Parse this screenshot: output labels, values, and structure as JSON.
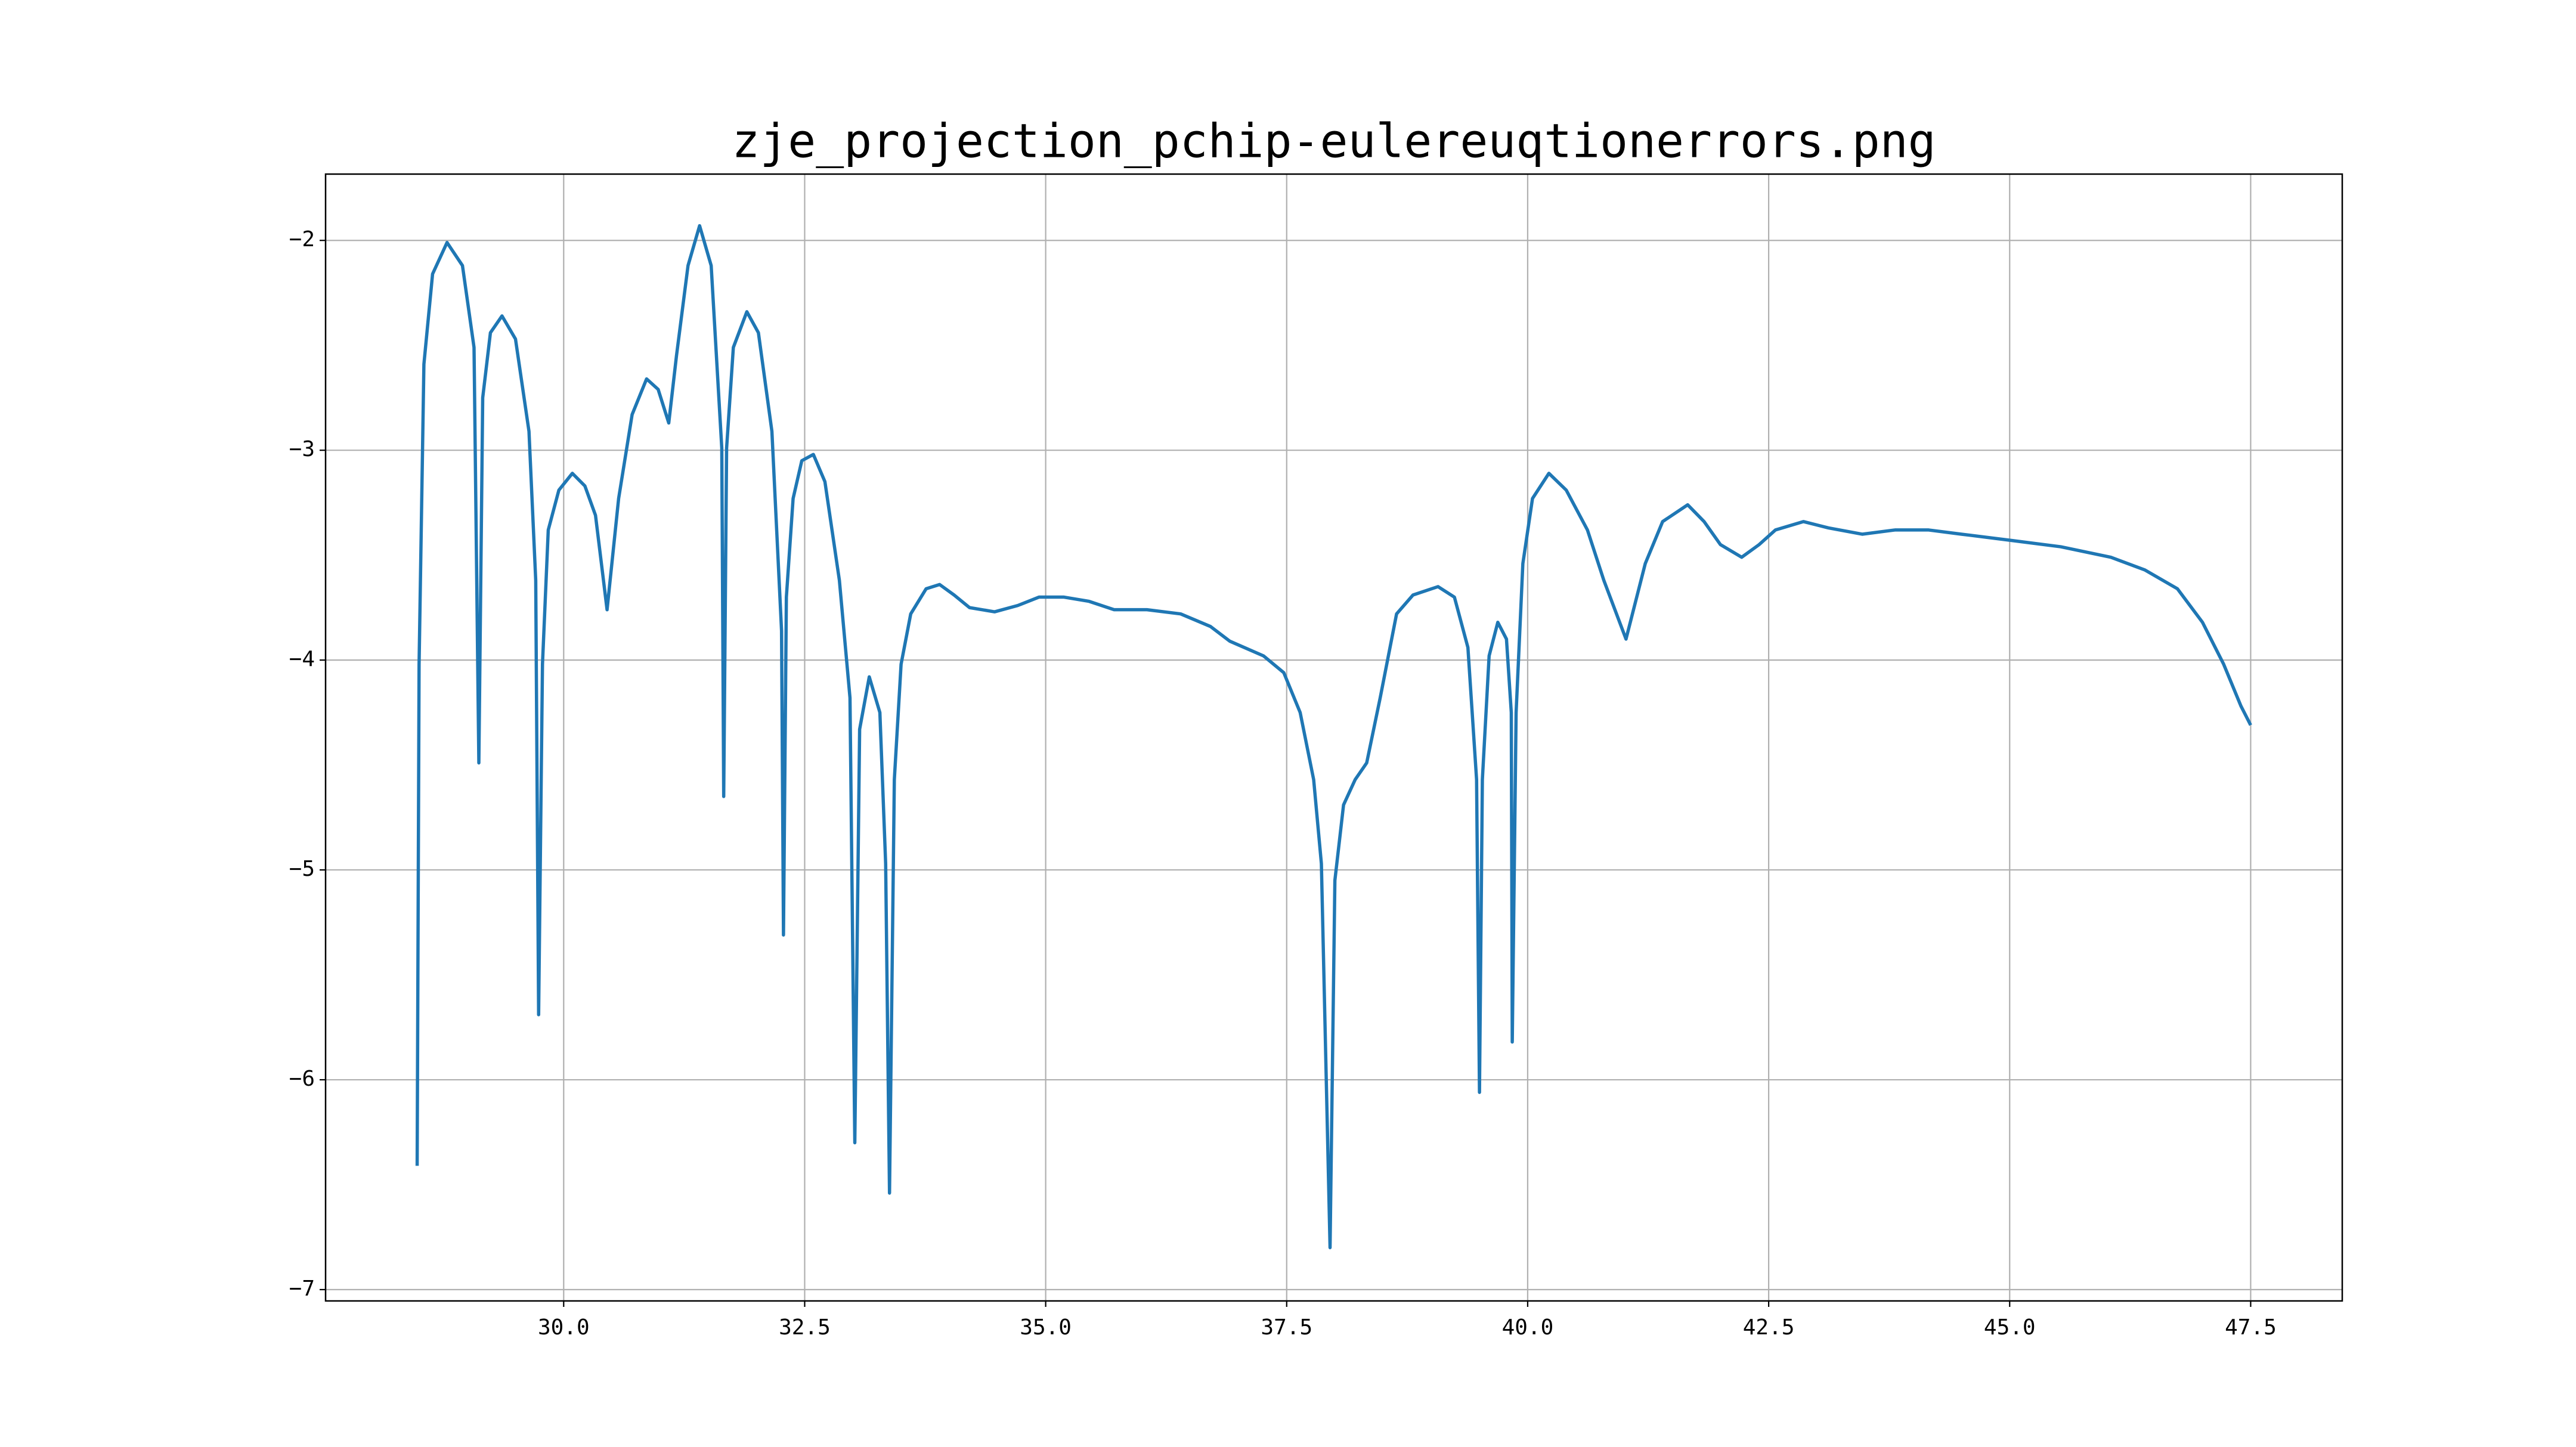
{
  "chart_data": {
    "type": "line",
    "title": "zje_projection_pchip-eulereuqtionerrors.png",
    "x": [
      28.48,
      28.5,
      28.55,
      28.64,
      28.79,
      28.95,
      29.07,
      29.12,
      29.16,
      29.24,
      29.36,
      29.5,
      29.64,
      29.71,
      29.74,
      29.78,
      29.84,
      29.95,
      30.09,
      30.22,
      30.33,
      30.45,
      30.57,
      30.71,
      30.86,
      30.98,
      31.09,
      31.17,
      31.29,
      31.41,
      31.53,
      31.64,
      31.66,
      31.69,
      31.76,
      31.9,
      32.02,
      32.16,
      32.26,
      32.28,
      32.31,
      32.38,
      32.47,
      32.59,
      32.71,
      32.86,
      32.97,
      33.02,
      33.07,
      33.17,
      33.28,
      33.34,
      33.38,
      33.43,
      33.5,
      33.6,
      33.76,
      33.9,
      34.05,
      34.21,
      34.47,
      34.71,
      34.93,
      35.19,
      35.45,
      35.71,
      36.05,
      36.4,
      36.71,
      36.91,
      37.26,
      37.47,
      37.64,
      37.78,
      37.86,
      37.95,
      38.0,
      38.09,
      38.21,
      38.33,
      38.47,
      38.64,
      38.81,
      39.07,
      39.24,
      39.38,
      39.47,
      39.5,
      39.53,
      39.6,
      39.69,
      39.78,
      39.83,
      39.84,
      39.88,
      39.95,
      40.05,
      40.22,
      40.4,
      40.62,
      40.79,
      41.02,
      41.22,
      41.4,
      41.66,
      41.83,
      42.0,
      42.22,
      42.4,
      42.57,
      42.86,
      43.12,
      43.47,
      43.81,
      44.16,
      44.5,
      45.02,
      45.53,
      46.05,
      46.4,
      46.74,
      47.0,
      47.22,
      47.4,
      47.5
    ],
    "series": [
      {
        "color": "#1f77b4",
        "values": [
          -6.41,
          -4.02,
          -2.59,
          -2.16,
          -2.01,
          -2.12,
          -2.51,
          -4.49,
          -2.75,
          -2.44,
          -2.36,
          -2.47,
          -2.91,
          -3.62,
          -5.69,
          -4.02,
          -3.38,
          -3.19,
          -3.11,
          -3.17,
          -3.31,
          -3.76,
          -3.23,
          -2.83,
          -2.66,
          -2.71,
          -2.87,
          -2.55,
          -2.12,
          -1.93,
          -2.12,
          -2.99,
          -4.65,
          -2.99,
          -2.51,
          -2.34,
          -2.44,
          -2.91,
          -3.86,
          -5.31,
          -3.7,
          -3.23,
          -3.05,
          -3.02,
          -3.15,
          -3.62,
          -4.18,
          -6.3,
          -4.33,
          -4.08,
          -4.25,
          -4.97,
          -6.54,
          -4.57,
          -4.02,
          -3.78,
          -3.66,
          -3.64,
          -3.69,
          -3.75,
          -3.77,
          -3.74,
          -3.7,
          -3.7,
          -3.72,
          -3.76,
          -3.76,
          -3.78,
          -3.84,
          -3.91,
          -3.98,
          -4.06,
          -4.25,
          -4.57,
          -4.97,
          -6.8,
          -5.05,
          -4.69,
          -4.57,
          -4.49,
          -4.18,
          -3.78,
          -3.69,
          -3.65,
          -3.7,
          -3.94,
          -4.57,
          -6.06,
          -4.57,
          -3.98,
          -3.82,
          -3.9,
          -4.25,
          -5.82,
          -4.25,
          -3.54,
          -3.23,
          -3.11,
          -3.19,
          -3.38,
          -3.62,
          -3.9,
          -3.54,
          -3.34,
          -3.26,
          -3.34,
          -3.45,
          -3.51,
          -3.45,
          -3.38,
          -3.34,
          -3.37,
          -3.4,
          -3.38,
          -3.38,
          -3.4,
          -3.43,
          -3.46,
          -3.51,
          -3.57,
          -3.66,
          -3.82,
          -4.02,
          -4.22,
          -4.31
        ]
      }
    ],
    "xlim": [
      27.53,
      48.45
    ],
    "ylim": [
      -7.054,
      -1.684
    ],
    "xticks": [
      {
        "value": 30,
        "label": "30.0"
      },
      {
        "value": 32.5,
        "label": "32.5"
      },
      {
        "value": 35,
        "label": "35.0"
      },
      {
        "value": 37.5,
        "label": "37.5"
      },
      {
        "value": 40,
        "label": "40.0"
      },
      {
        "value": 42.5,
        "label": "42.5"
      },
      {
        "value": 45,
        "label": "45.0"
      },
      {
        "value": 47.5,
        "label": "47.5"
      }
    ],
    "yticks": [
      {
        "value": -2,
        "label": "−2"
      },
      {
        "value": -3,
        "label": "−3"
      },
      {
        "value": -4,
        "label": "−4"
      },
      {
        "value": -5,
        "label": "−5"
      },
      {
        "value": -6,
        "label": "−6"
      },
      {
        "value": -7,
        "label": "−7"
      }
    ],
    "grid": true
  }
}
